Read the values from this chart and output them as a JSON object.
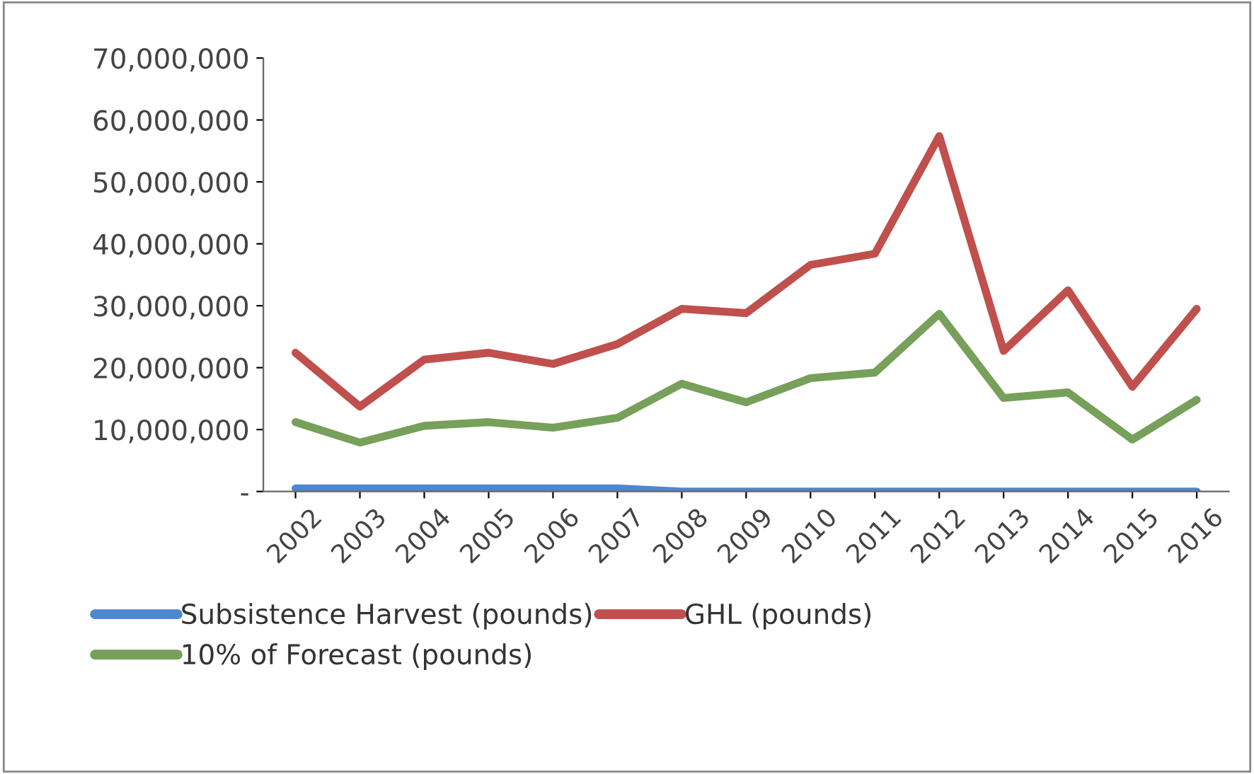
{
  "chart_data": {
    "type": "line",
    "categories": [
      "2002",
      "2003",
      "2004",
      "2005",
      "2006",
      "2007",
      "2008",
      "2009",
      "2010",
      "2011",
      "2012",
      "2013",
      "2014",
      "2015",
      "2016"
    ],
    "series": [
      {
        "name": "Subsistence Harvest (pounds)",
        "color": "#4f86d0",
        "values": [
          500000,
          500000,
          500000,
          500000,
          500000,
          500000,
          0,
          0,
          0,
          0,
          0,
          0,
          0,
          0,
          0
        ]
      },
      {
        "name": "GHL (pounds)",
        "color": "#c0504d",
        "values": [
          22400000,
          13700000,
          21300000,
          22400000,
          20600000,
          23800000,
          29500000,
          28800000,
          36600000,
          38400000,
          57400000,
          22700000,
          32500000,
          16900000,
          29500000
        ]
      },
      {
        "name": "10% of Forecast (pounds)",
        "color": "#77a05a",
        "values": [
          11200000,
          7900000,
          10600000,
          11200000,
          10300000,
          11900000,
          17400000,
          14400000,
          18300000,
          19200000,
          28700000,
          15100000,
          16000000,
          8400000,
          14800000
        ]
      }
    ],
    "ylim": [
      0,
      70000000
    ],
    "yticks": [
      {
        "value": 0,
        "label": "-"
      },
      {
        "value": 10000000,
        "label": "10,000,000"
      },
      {
        "value": 20000000,
        "label": "20,000,000"
      },
      {
        "value": 30000000,
        "label": "30,000,000"
      },
      {
        "value": 40000000,
        "label": "40,000,000"
      },
      {
        "value": 50000000,
        "label": "50,000,000"
      },
      {
        "value": 60000000,
        "label": "60,000,000"
      },
      {
        "value": 70000000,
        "label": "70,000,000"
      }
    ],
    "grid": false,
    "legend": "bottom",
    "marker": "none",
    "line_style": "solid"
  }
}
